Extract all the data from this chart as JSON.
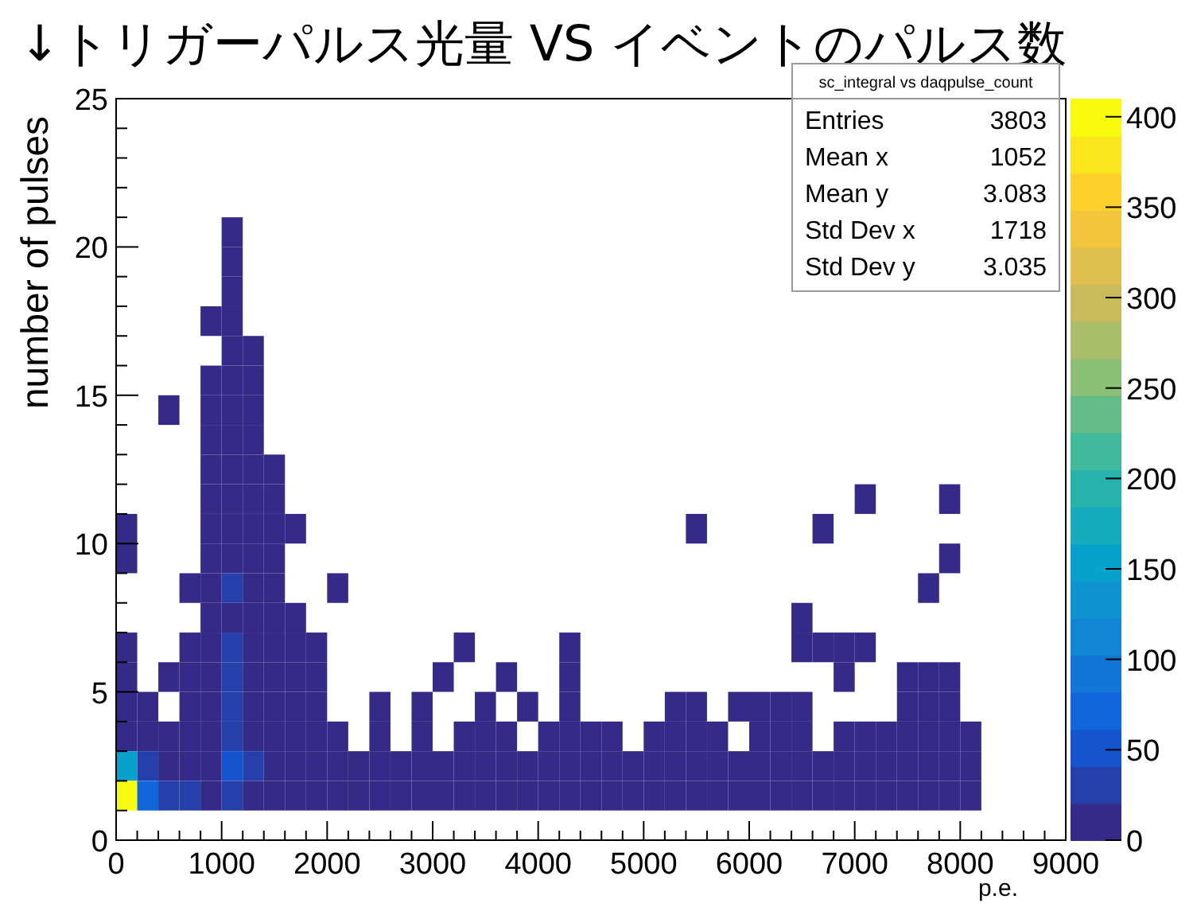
{
  "chart_data": {
    "type": "heatmap",
    "title": "↓トリガーパルス光量 VS イベントのパルス数",
    "xlabel": "p.e.",
    "ylabel": "number of pulses",
    "x": [
      100,
      300,
      500,
      700,
      900,
      1100,
      1300,
      1500,
      1700,
      1900,
      2100,
      2300,
      2500,
      2700,
      2900,
      3100,
      3300,
      3500,
      3700,
      3900,
      4100,
      4300,
      4500,
      4700,
      4900,
      5100,
      5300,
      5500,
      5700,
      5900,
      6100,
      6300,
      6500,
      6700,
      6900,
      7100,
      7300,
      7500,
      7700,
      7900,
      8100
    ],
    "y": [
      20.5,
      19.5,
      18.5,
      17.5,
      16.5,
      15.5,
      14.5,
      13.5,
      12.5,
      11.5,
      10.5,
      9.5,
      8.5,
      7.5,
      6.5,
      5.5,
      4.5,
      3.5,
      2.5,
      1.5
    ],
    "cells": [
      [
        null,
        null,
        null,
        null,
        null,
        3,
        null,
        null,
        null,
        null,
        null,
        null,
        null,
        null,
        null,
        null,
        null,
        null,
        null,
        null,
        null,
        null,
        null,
        null,
        null,
        null,
        null,
        null,
        null,
        null,
        null,
        null,
        null,
        null,
        null,
        null,
        null,
        null,
        null,
        null,
        null
      ],
      [
        null,
        null,
        null,
        null,
        null,
        1,
        null,
        null,
        null,
        null,
        null,
        null,
        null,
        null,
        null,
        null,
        null,
        null,
        null,
        null,
        null,
        null,
        null,
        null,
        null,
        null,
        null,
        null,
        null,
        null,
        null,
        null,
        null,
        null,
        null,
        null,
        null,
        null,
        null,
        null,
        null
      ],
      [
        null,
        null,
        null,
        null,
        null,
        4,
        null,
        null,
        null,
        null,
        null,
        null,
        null,
        null,
        null,
        null,
        null,
        null,
        null,
        null,
        null,
        null,
        null,
        null,
        null,
        null,
        null,
        null,
        null,
        null,
        null,
        null,
        null,
        null,
        null,
        null,
        null,
        null,
        null,
        null,
        null
      ],
      [
        null,
        null,
        null,
        null,
        2,
        3,
        null,
        null,
        null,
        null,
        null,
        null,
        null,
        null,
        null,
        null,
        null,
        null,
        null,
        null,
        null,
        null,
        null,
        null,
        null,
        null,
        null,
        null,
        null,
        null,
        null,
        null,
        null,
        null,
        null,
        null,
        null,
        null,
        null,
        null,
        null
      ],
      [
        null,
        null,
        null,
        null,
        null,
        3,
        2,
        null,
        null,
        null,
        null,
        null,
        null,
        null,
        null,
        null,
        null,
        null,
        null,
        null,
        null,
        null,
        null,
        null,
        null,
        null,
        null,
        null,
        null,
        null,
        null,
        null,
        null,
        null,
        null,
        null,
        null,
        null,
        null,
        null,
        null
      ],
      [
        null,
        null,
        null,
        null,
        2,
        5,
        3,
        null,
        null,
        null,
        null,
        null,
        null,
        null,
        null,
        null,
        null,
        null,
        null,
        null,
        null,
        null,
        null,
        null,
        null,
        null,
        null,
        null,
        null,
        null,
        null,
        null,
        null,
        null,
        null,
        null,
        null,
        null,
        null,
        null,
        null
      ],
      [
        null,
        null,
        1,
        null,
        4,
        6,
        3,
        null,
        null,
        null,
        null,
        null,
        null,
        null,
        null,
        null,
        null,
        null,
        null,
        null,
        null,
        null,
        null,
        null,
        null,
        null,
        null,
        null,
        null,
        null,
        null,
        null,
        null,
        null,
        null,
        null,
        null,
        null,
        null,
        null,
        null
      ],
      [
        null,
        null,
        null,
        null,
        5,
        8,
        4,
        null,
        null,
        null,
        null,
        null,
        null,
        null,
        null,
        null,
        null,
        null,
        null,
        null,
        null,
        null,
        null,
        null,
        null,
        null,
        null,
        null,
        null,
        null,
        null,
        null,
        null,
        null,
        null,
        null,
        null,
        null,
        null,
        null,
        null
      ],
      [
        null,
        null,
        null,
        null,
        3,
        9,
        5,
        1,
        null,
        null,
        null,
        null,
        null,
        null,
        null,
        null,
        null,
        null,
        null,
        null,
        null,
        null,
        null,
        null,
        null,
        null,
        null,
        null,
        null,
        null,
        null,
        null,
        null,
        null,
        null,
        null,
        null,
        null,
        null,
        null,
        null
      ],
      [
        null,
        null,
        null,
        null,
        4,
        10,
        6,
        2,
        null,
        null,
        null,
        null,
        null,
        null,
        null,
        null,
        null,
        null,
        null,
        null,
        null,
        null,
        null,
        null,
        null,
        null,
        null,
        null,
        null,
        null,
        null,
        null,
        null,
        null,
        null,
        2,
        null,
        null,
        null,
        1,
        null
      ],
      [
        1,
        null,
        null,
        null,
        6,
        12,
        8,
        3,
        2,
        null,
        null,
        null,
        null,
        null,
        null,
        null,
        null,
        null,
        null,
        null,
        null,
        null,
        null,
        null,
        null,
        null,
        null,
        1,
        null,
        null,
        null,
        null,
        null,
        1,
        null,
        null,
        null,
        null,
        null,
        null,
        null
      ],
      [
        1,
        null,
        null,
        null,
        10,
        15,
        12,
        6,
        null,
        null,
        null,
        null,
        null,
        null,
        null,
        null,
        null,
        null,
        null,
        null,
        null,
        null,
        null,
        null,
        null,
        null,
        null,
        null,
        null,
        null,
        null,
        null,
        null,
        null,
        null,
        null,
        null,
        null,
        null,
        1,
        null
      ],
      [
        null,
        null,
        null,
        1,
        10,
        22,
        14,
        4,
        null,
        null,
        2,
        null,
        null,
        null,
        null,
        null,
        null,
        null,
        null,
        null,
        null,
        null,
        null,
        null,
        null,
        null,
        null,
        null,
        null,
        null,
        null,
        null,
        null,
        null,
        null,
        null,
        null,
        null,
        1,
        null,
        null
      ],
      [
        null,
        null,
        null,
        null,
        8,
        20,
        15,
        5,
        2,
        null,
        null,
        null,
        null,
        null,
        null,
        null,
        null,
        null,
        null,
        null,
        null,
        null,
        null,
        null,
        null,
        null,
        null,
        null,
        null,
        null,
        null,
        null,
        1,
        null,
        null,
        null,
        null,
        null,
        null,
        null,
        null
      ],
      [
        1,
        null,
        null,
        1,
        10,
        25,
        16,
        4,
        2,
        1,
        null,
        null,
        null,
        null,
        null,
        null,
        1,
        null,
        null,
        null,
        null,
        1,
        null,
        null,
        null,
        null,
        null,
        null,
        null,
        null,
        null,
        null,
        2,
        1,
        1,
        1,
        null,
        null,
        null,
        null,
        null
      ],
      [
        2,
        null,
        1,
        2,
        10,
        30,
        15,
        4,
        2,
        1,
        null,
        null,
        null,
        null,
        null,
        1,
        null,
        null,
        1,
        null,
        null,
        2,
        null,
        null,
        null,
        null,
        null,
        null,
        null,
        null,
        null,
        null,
        null,
        null,
        1,
        null,
        null,
        2,
        1,
        3,
        null
      ],
      [
        3,
        2,
        null,
        2,
        12,
        35,
        18,
        6,
        3,
        1,
        null,
        null,
        1,
        null,
        1,
        null,
        null,
        2,
        null,
        1,
        null,
        1,
        null,
        null,
        null,
        null,
        1,
        1,
        null,
        1,
        2,
        1,
        1,
        null,
        null,
        null,
        null,
        3,
        2,
        4,
        null
      ],
      [
        5,
        4,
        3,
        3,
        14,
        40,
        20,
        8,
        4,
        2,
        1,
        null,
        2,
        null,
        1,
        null,
        1,
        1,
        1,
        null,
        1,
        2,
        1,
        1,
        null,
        1,
        2,
        1,
        1,
        null,
        2,
        2,
        1,
        null,
        2,
        1,
        1,
        3,
        4,
        6,
        1
      ],
      [
        150,
        40,
        12,
        10,
        18,
        45,
        22,
        10,
        5,
        3,
        2,
        1,
        2,
        2,
        1,
        2,
        1,
        2,
        1,
        1,
        2,
        3,
        2,
        1,
        2,
        3,
        2,
        2,
        3,
        1,
        3,
        2,
        2,
        1,
        2,
        2,
        2,
        5,
        6,
        8,
        1
      ],
      [
        400,
        80,
        40,
        25,
        20,
        40,
        20,
        10,
        8,
        5,
        2,
        1,
        3,
        2,
        2,
        1,
        2,
        1,
        2,
        1,
        2,
        3,
        1,
        3,
        2,
        1,
        3,
        2,
        2,
        2,
        2,
        2,
        1,
        3,
        1,
        3,
        3,
        6,
        6,
        8,
        2
      ]
    ],
    "xlim": [
      0,
      9000
    ],
    "xticks": [
      0,
      1000,
      2000,
      3000,
      4000,
      5000,
      6000,
      7000,
      8000,
      9000
    ],
    "ylim": [
      0,
      25
    ],
    "yticks": [
      0,
      5,
      10,
      15,
      20,
      25
    ],
    "clim": [
      0,
      410
    ],
    "cticks": [
      0,
      50,
      100,
      150,
      200,
      250,
      300,
      350,
      400
    ],
    "annotations": [
      "sc_integral vs daqpulse_count",
      "Entries",
      "3803",
      "Mean x",
      "1052",
      "Mean y",
      "3.083",
      "Std Dev x",
      "1718",
      "Std Dev y",
      "3.035"
    ]
  }
}
